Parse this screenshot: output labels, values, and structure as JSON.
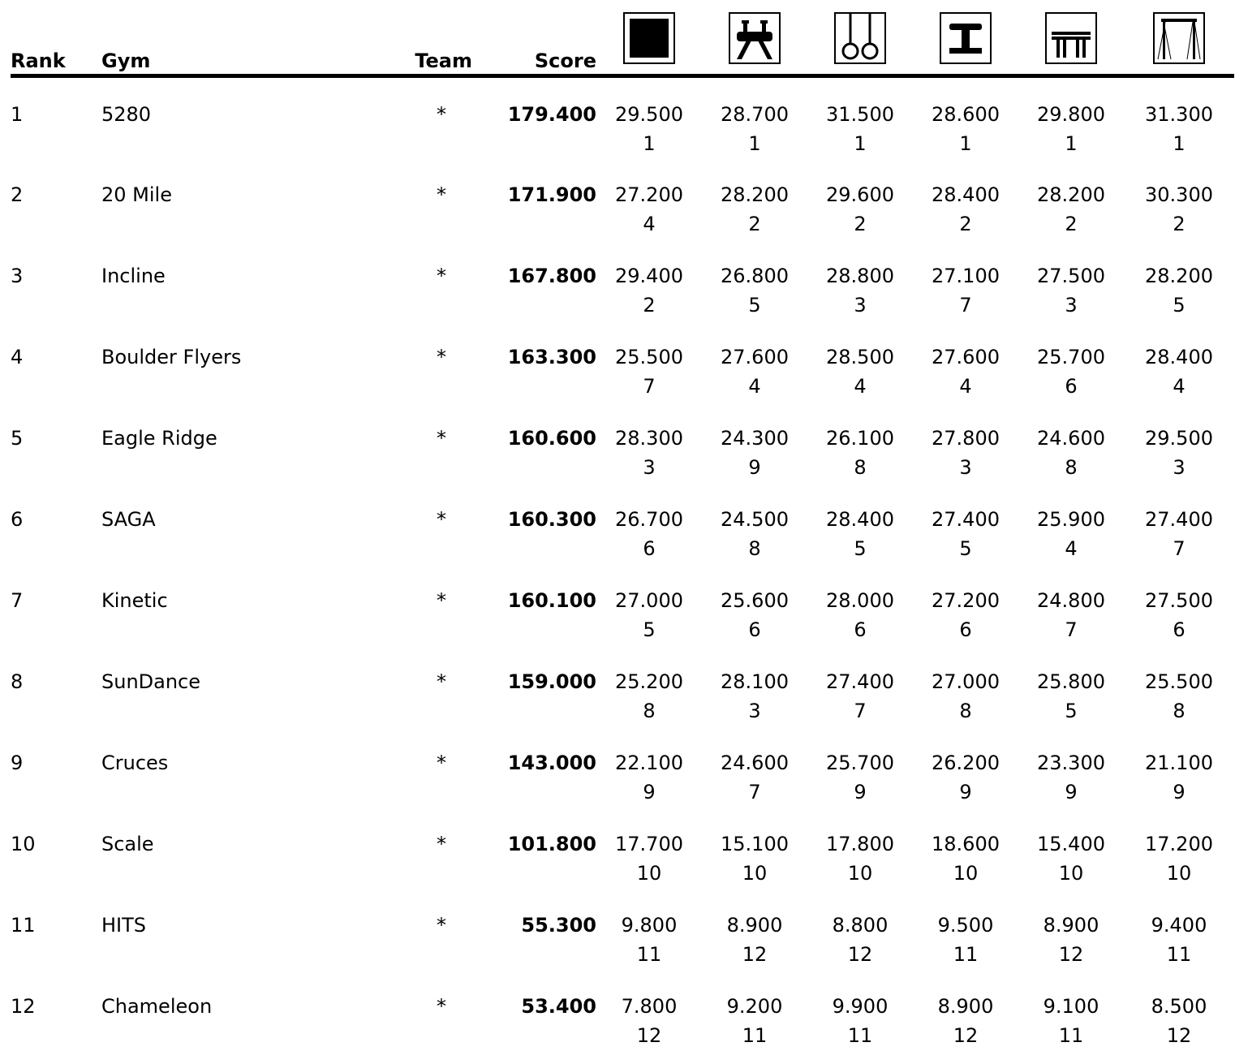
{
  "headers": {
    "rank": "Rank",
    "gym": "Gym",
    "team": "Team",
    "score": "Score"
  },
  "events": [
    {
      "icon": "floor-exercise-icon"
    },
    {
      "icon": "pommel-horse-icon"
    },
    {
      "icon": "still-rings-icon"
    },
    {
      "icon": "vault-icon"
    },
    {
      "icon": "parallel-bars-icon"
    },
    {
      "icon": "high-bar-icon"
    }
  ],
  "rows": [
    {
      "rank": "1",
      "gym": "5280",
      "team": "*",
      "score": "179.400",
      "events": [
        {
          "score": "29.500",
          "place": "1"
        },
        {
          "score": "28.700",
          "place": "1"
        },
        {
          "score": "31.500",
          "place": "1"
        },
        {
          "score": "28.600",
          "place": "1"
        },
        {
          "score": "29.800",
          "place": "1"
        },
        {
          "score": "31.300",
          "place": "1"
        }
      ]
    },
    {
      "rank": "2",
      "gym": "20 Mile",
      "team": "*",
      "score": "171.900",
      "events": [
        {
          "score": "27.200",
          "place": "4"
        },
        {
          "score": "28.200",
          "place": "2"
        },
        {
          "score": "29.600",
          "place": "2"
        },
        {
          "score": "28.400",
          "place": "2"
        },
        {
          "score": "28.200",
          "place": "2"
        },
        {
          "score": "30.300",
          "place": "2"
        }
      ]
    },
    {
      "rank": "3",
      "gym": "Incline",
      "team": "*",
      "score": "167.800",
      "events": [
        {
          "score": "29.400",
          "place": "2"
        },
        {
          "score": "26.800",
          "place": "5"
        },
        {
          "score": "28.800",
          "place": "3"
        },
        {
          "score": "27.100",
          "place": "7"
        },
        {
          "score": "27.500",
          "place": "3"
        },
        {
          "score": "28.200",
          "place": "5"
        }
      ]
    },
    {
      "rank": "4",
      "gym": "Boulder Flyers",
      "team": "*",
      "score": "163.300",
      "events": [
        {
          "score": "25.500",
          "place": "7"
        },
        {
          "score": "27.600",
          "place": "4"
        },
        {
          "score": "28.500",
          "place": "4"
        },
        {
          "score": "27.600",
          "place": "4"
        },
        {
          "score": "25.700",
          "place": "6"
        },
        {
          "score": "28.400",
          "place": "4"
        }
      ]
    },
    {
      "rank": "5",
      "gym": "Eagle Ridge",
      "team": "*",
      "score": "160.600",
      "events": [
        {
          "score": "28.300",
          "place": "3"
        },
        {
          "score": "24.300",
          "place": "9"
        },
        {
          "score": "26.100",
          "place": "8"
        },
        {
          "score": "27.800",
          "place": "3"
        },
        {
          "score": "24.600",
          "place": "8"
        },
        {
          "score": "29.500",
          "place": "3"
        }
      ]
    },
    {
      "rank": "6",
      "gym": "SAGA",
      "team": "*",
      "score": "160.300",
      "events": [
        {
          "score": "26.700",
          "place": "6"
        },
        {
          "score": "24.500",
          "place": "8"
        },
        {
          "score": "28.400",
          "place": "5"
        },
        {
          "score": "27.400",
          "place": "5"
        },
        {
          "score": "25.900",
          "place": "4"
        },
        {
          "score": "27.400",
          "place": "7"
        }
      ]
    },
    {
      "rank": "7",
      "gym": "Kinetic",
      "team": "*",
      "score": "160.100",
      "events": [
        {
          "score": "27.000",
          "place": "5"
        },
        {
          "score": "25.600",
          "place": "6"
        },
        {
          "score": "28.000",
          "place": "6"
        },
        {
          "score": "27.200",
          "place": "6"
        },
        {
          "score": "24.800",
          "place": "7"
        },
        {
          "score": "27.500",
          "place": "6"
        }
      ]
    },
    {
      "rank": "8",
      "gym": "SunDance",
      "team": "*",
      "score": "159.000",
      "events": [
        {
          "score": "25.200",
          "place": "8"
        },
        {
          "score": "28.100",
          "place": "3"
        },
        {
          "score": "27.400",
          "place": "7"
        },
        {
          "score": "27.000",
          "place": "8"
        },
        {
          "score": "25.800",
          "place": "5"
        },
        {
          "score": "25.500",
          "place": "8"
        }
      ]
    },
    {
      "rank": "9",
      "gym": "Cruces",
      "team": "*",
      "score": "143.000",
      "events": [
        {
          "score": "22.100",
          "place": "9"
        },
        {
          "score": "24.600",
          "place": "7"
        },
        {
          "score": "25.700",
          "place": "9"
        },
        {
          "score": "26.200",
          "place": "9"
        },
        {
          "score": "23.300",
          "place": "9"
        },
        {
          "score": "21.100",
          "place": "9"
        }
      ]
    },
    {
      "rank": "10",
      "gym": "Scale",
      "team": "*",
      "score": "101.800",
      "events": [
        {
          "score": "17.700",
          "place": "10"
        },
        {
          "score": "15.100",
          "place": "10"
        },
        {
          "score": "17.800",
          "place": "10"
        },
        {
          "score": "18.600",
          "place": "10"
        },
        {
          "score": "15.400",
          "place": "10"
        },
        {
          "score": "17.200",
          "place": "10"
        }
      ]
    },
    {
      "rank": "11",
      "gym": "HITS",
      "team": "*",
      "score": "55.300",
      "events": [
        {
          "score": "9.800",
          "place": "11"
        },
        {
          "score": "8.900",
          "place": "12"
        },
        {
          "score": "8.800",
          "place": "12"
        },
        {
          "score": "9.500",
          "place": "11"
        },
        {
          "score": "8.900",
          "place": "12"
        },
        {
          "score": "9.400",
          "place": "11"
        }
      ]
    },
    {
      "rank": "12",
      "gym": "Chameleon",
      "team": "*",
      "score": "53.400",
      "events": [
        {
          "score": "7.800",
          "place": "12"
        },
        {
          "score": "9.200",
          "place": "11"
        },
        {
          "score": "9.900",
          "place": "11"
        },
        {
          "score": "8.900",
          "place": "12"
        },
        {
          "score": "9.100",
          "place": "11"
        },
        {
          "score": "8.500",
          "place": "12"
        }
      ]
    }
  ]
}
